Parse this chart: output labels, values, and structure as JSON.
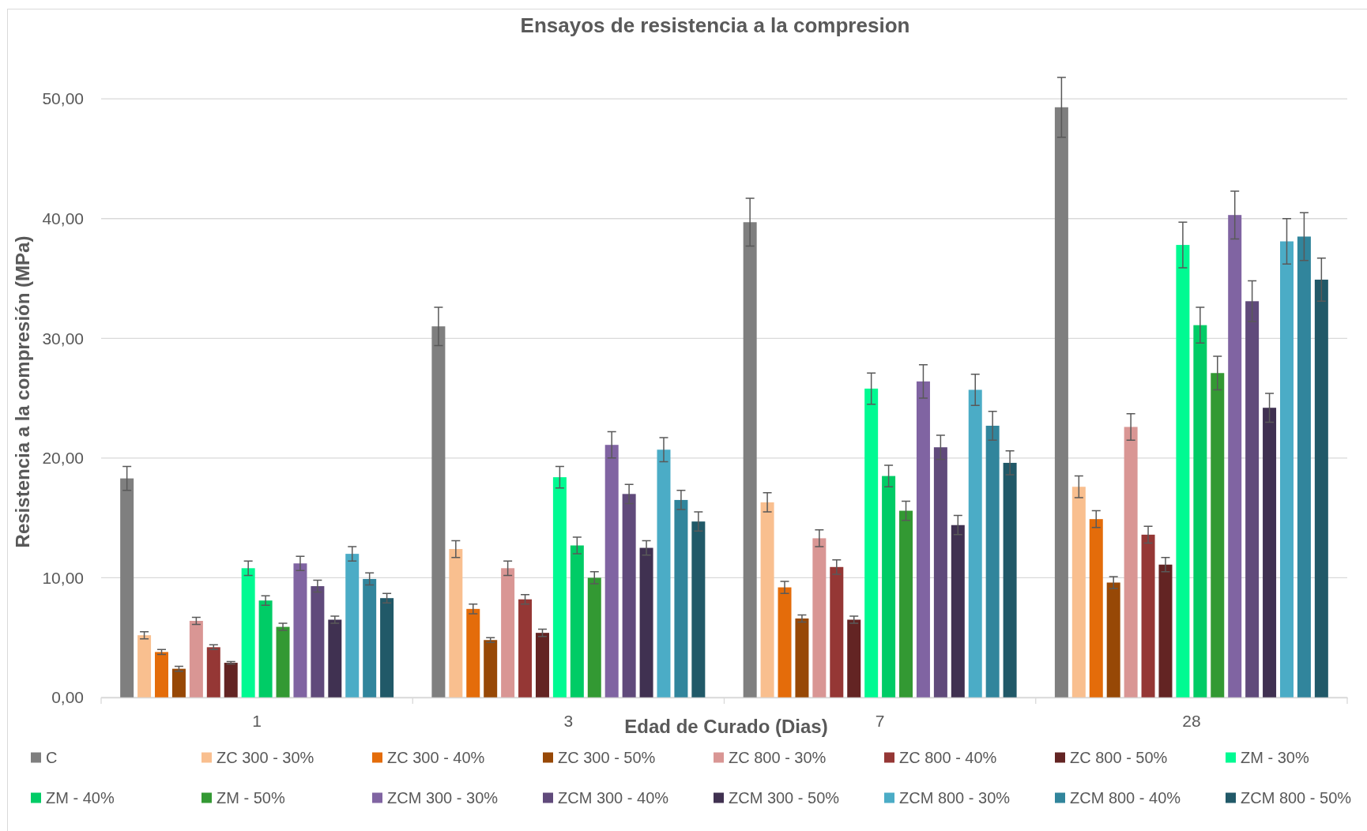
{
  "chart_data": {
    "type": "bar",
    "title": "Ensayos de resistencia a la compresion",
    "xlabel": "Edad de Curado (Dias)",
    "ylabel": "Resistencia a la compresión (MPa)",
    "categories": [
      "1",
      "3",
      "7",
      "28"
    ],
    "ylim": [
      0,
      57.5
    ],
    "yticks": [
      {
        "value": 0,
        "label": "0,00"
      },
      {
        "value": 10,
        "label": "10,00"
      },
      {
        "value": 20,
        "label": "20,00"
      },
      {
        "value": 30,
        "label": "30,00"
      },
      {
        "value": 40,
        "label": "40,00"
      },
      {
        "value": 50,
        "label": "50,00"
      }
    ],
    "grid": "y",
    "legend": "bottom",
    "series": [
      {
        "name": "C",
        "color": "#7f7f7f",
        "values": [
          18.3,
          31.0,
          39.7,
          49.3
        ],
        "errors": [
          1.0,
          1.6,
          2.0,
          2.5
        ]
      },
      {
        "name": "ZC 300 - 30%",
        "color": "#f9bf8f",
        "values": [
          5.2,
          12.4,
          16.3,
          17.6
        ],
        "errors": [
          0.3,
          0.7,
          0.8,
          0.9
        ]
      },
      {
        "name": "ZC 300 - 40%",
        "color": "#e46c0a",
        "values": [
          3.8,
          7.4,
          9.2,
          14.9
        ],
        "errors": [
          0.2,
          0.4,
          0.5,
          0.7
        ]
      },
      {
        "name": "ZC 300 - 50%",
        "color": "#974806",
        "values": [
          2.4,
          4.8,
          6.6,
          9.6
        ],
        "errors": [
          0.2,
          0.2,
          0.3,
          0.5
        ]
      },
      {
        "name": "ZC 800 - 30%",
        "color": "#d99694",
        "values": [
          6.4,
          10.8,
          13.3,
          22.6
        ],
        "errors": [
          0.3,
          0.6,
          0.7,
          1.1
        ]
      },
      {
        "name": "ZC 800 - 40%",
        "color": "#953735",
        "values": [
          4.2,
          8.2,
          10.9,
          13.6
        ],
        "errors": [
          0.2,
          0.4,
          0.6,
          0.7
        ]
      },
      {
        "name": "ZC 800 - 50%",
        "color": "#632423",
        "values": [
          2.9,
          5.4,
          6.5,
          11.1
        ],
        "errors": [
          0.1,
          0.3,
          0.3,
          0.6
        ]
      },
      {
        "name": "ZM - 30%",
        "color": "#00fa92",
        "values": [
          10.8,
          18.4,
          25.8,
          37.8
        ],
        "errors": [
          0.6,
          0.9,
          1.3,
          1.9
        ]
      },
      {
        "name": "ZM - 40%",
        "color": "#00cc66",
        "values": [
          8.1,
          12.7,
          18.5,
          31.1
        ],
        "errors": [
          0.4,
          0.7,
          0.9,
          1.5
        ]
      },
      {
        "name": "ZM - 50%",
        "color": "#339933",
        "values": [
          5.9,
          10.0,
          15.6,
          27.1
        ],
        "errors": [
          0.3,
          0.5,
          0.8,
          1.4
        ]
      },
      {
        "name": "ZCM 300 - 30%",
        "color": "#8064a2",
        "values": [
          11.2,
          21.1,
          26.4,
          40.3
        ],
        "errors": [
          0.6,
          1.1,
          1.4,
          2.0
        ]
      },
      {
        "name": "ZCM 300 - 40%",
        "color": "#604a7b",
        "values": [
          9.3,
          17.0,
          20.9,
          33.1
        ],
        "errors": [
          0.5,
          0.8,
          1.0,
          1.7
        ]
      },
      {
        "name": "ZCM 300 - 50%",
        "color": "#403151",
        "values": [
          6.5,
          12.5,
          14.4,
          24.2
        ],
        "errors": [
          0.3,
          0.6,
          0.8,
          1.2
        ]
      },
      {
        "name": "ZCM 800 - 30%",
        "color": "#4bacc6",
        "values": [
          12.0,
          20.7,
          25.7,
          38.1
        ],
        "errors": [
          0.6,
          1.0,
          1.3,
          1.9
        ]
      },
      {
        "name": "ZCM 800 - 40%",
        "color": "#31859c",
        "values": [
          9.9,
          16.5,
          22.7,
          38.5
        ],
        "errors": [
          0.5,
          0.8,
          1.2,
          2.0
        ]
      },
      {
        "name": "ZCM 800 - 50%",
        "color": "#215968",
        "values": [
          8.3,
          14.7,
          19.6,
          34.9
        ],
        "errors": [
          0.4,
          0.8,
          1.0,
          1.8
        ]
      }
    ]
  }
}
